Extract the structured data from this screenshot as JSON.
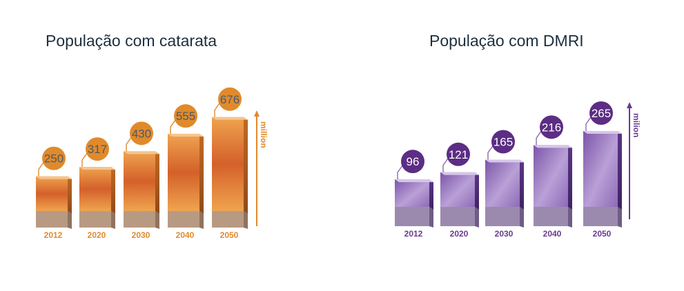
{
  "chart_data": [
    {
      "type": "bar",
      "title": "População com catarata",
      "categories": [
        "2012",
        "2020",
        "2030",
        "2040",
        "2050"
      ],
      "values": [
        250,
        317,
        430,
        555,
        676
      ],
      "unit_label": "million",
      "color": "#e08a2c",
      "ylim": [
        0,
        700
      ]
    },
    {
      "type": "bar",
      "title": "População com DMRI",
      "categories": [
        "2012",
        "2020",
        "2030",
        "2040",
        "2050"
      ],
      "values": [
        96,
        121,
        165,
        216,
        265
      ],
      "unit_label": "milion",
      "color": "#6a3a8f",
      "ylim": [
        0,
        280
      ]
    }
  ]
}
